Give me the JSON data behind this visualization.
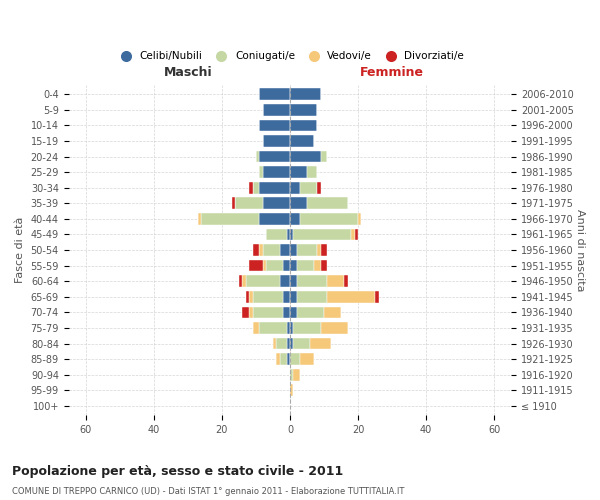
{
  "age_groups": [
    "100+",
    "95-99",
    "90-94",
    "85-89",
    "80-84",
    "75-79",
    "70-74",
    "65-69",
    "60-64",
    "55-59",
    "50-54",
    "45-49",
    "40-44",
    "35-39",
    "30-34",
    "25-29",
    "20-24",
    "15-19",
    "10-14",
    "5-9",
    "0-4"
  ],
  "birth_years": [
    "≤ 1910",
    "1911-1915",
    "1916-1920",
    "1921-1925",
    "1926-1930",
    "1931-1935",
    "1936-1940",
    "1941-1945",
    "1946-1950",
    "1951-1955",
    "1956-1960",
    "1961-1965",
    "1966-1970",
    "1971-1975",
    "1976-1980",
    "1981-1985",
    "1986-1990",
    "1991-1995",
    "1996-2000",
    "2001-2005",
    "2006-2010"
  ],
  "males": {
    "celibi": [
      0,
      0,
      0,
      1,
      1,
      1,
      2,
      2,
      3,
      2,
      3,
      1,
      9,
      8,
      9,
      8,
      9,
      8,
      9,
      8,
      9
    ],
    "coniugati": [
      0,
      0,
      0,
      2,
      3,
      8,
      9,
      9,
      10,
      5,
      5,
      6,
      17,
      8,
      2,
      1,
      1,
      0,
      0,
      0,
      0
    ],
    "vedovi": [
      0,
      0,
      0,
      1,
      1,
      2,
      1,
      1,
      1,
      1,
      1,
      0,
      1,
      0,
      0,
      0,
      0,
      0,
      0,
      0,
      0
    ],
    "divorziati": [
      0,
      0,
      0,
      0,
      0,
      0,
      2,
      1,
      1,
      4,
      2,
      0,
      0,
      1,
      1,
      0,
      0,
      0,
      0,
      0,
      0
    ]
  },
  "females": {
    "nubili": [
      0,
      0,
      0,
      0,
      1,
      1,
      2,
      2,
      2,
      2,
      2,
      1,
      3,
      5,
      3,
      5,
      9,
      7,
      8,
      8,
      9
    ],
    "coniugate": [
      0,
      0,
      1,
      3,
      5,
      8,
      8,
      9,
      9,
      5,
      6,
      17,
      17,
      12,
      5,
      3,
      2,
      0,
      0,
      0,
      0
    ],
    "vedove": [
      0,
      1,
      2,
      4,
      6,
      8,
      5,
      14,
      5,
      2,
      1,
      1,
      1,
      0,
      0,
      0,
      0,
      0,
      0,
      0,
      0
    ],
    "divorziate": [
      0,
      0,
      0,
      0,
      0,
      0,
      0,
      1,
      1,
      2,
      2,
      1,
      0,
      0,
      1,
      0,
      0,
      0,
      0,
      0,
      0
    ]
  },
  "color_celibi": "#3D6B9E",
  "color_coniugati": "#C5D8A4",
  "color_vedovi": "#F5C87A",
  "color_divorziati": "#CC2222",
  "title": "Popolazione per età, sesso e stato civile - 2011",
  "subtitle": "COMUNE DI TREPPO CARNICO (UD) - Dati ISTAT 1° gennaio 2011 - Elaborazione TUTTITALIA.IT",
  "xlabel_left": "Maschi",
  "xlabel_right": "Femmine",
  "ylabel_left": "Fasce di età",
  "ylabel_right": "Anni di nascita",
  "xlim": 65,
  "bg_color": "#ffffff",
  "grid_color": "#cccccc"
}
